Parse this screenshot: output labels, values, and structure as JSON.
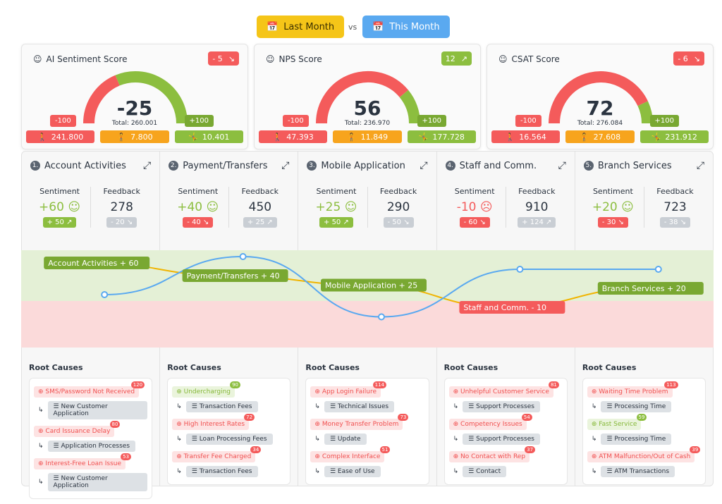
{
  "toggle": {
    "last": "Last Month",
    "vs": "vs",
    "this": "This Month"
  },
  "colors": {
    "red": "#f45b5b",
    "green": "#8cbe3f",
    "orange": "#f7a41d",
    "blue": "#5aa9f0",
    "line_orange": "#f0b400"
  },
  "gauges": [
    {
      "icon": "smile-icon",
      "title": "AI Sentiment Score",
      "delta": "- 5",
      "trend": "down",
      "value": "-25",
      "value_num": -25,
      "total": "Total: 260.001",
      "min": "-100",
      "max": "+100",
      "counts": [
        "241.800",
        "7.800",
        "10.401"
      ]
    },
    {
      "icon": "nps-person-icon",
      "title": "NPS Score",
      "delta": "12",
      "trend": "up",
      "value": "56",
      "value_num": 56,
      "total": "Total: 236.970",
      "min": "-100",
      "max": "+100",
      "counts": [
        "47.393",
        "11.849",
        "177.728"
      ]
    },
    {
      "icon": "smile-icon",
      "title": "CSAT Score",
      "delta": "- 6",
      "trend": "down",
      "value": "72",
      "value_num": 72,
      "total": "Total: 276.084",
      "min": "-100",
      "max": "+100",
      "counts": [
        "16.564",
        "27.608",
        "231.912"
      ]
    }
  ],
  "labels": {
    "sentiment": "Sentiment",
    "feedback": "Feedback",
    "root_causes": "Root Causes"
  },
  "sections": [
    {
      "num": "1.",
      "title": "Account Activities",
      "sentiment": "+60",
      "mood": "happy",
      "sent_delta": "+ 50",
      "sent_trend": "up",
      "feedback": "278",
      "fb_delta": "- 20",
      "chart_label": "Account Activities + 60",
      "causes": [
        {
          "text": "SMS/Password Not Received",
          "count": "120",
          "pos": false,
          "cat": "New Customer Application"
        },
        {
          "text": "Card Issuance Delay",
          "count": "80",
          "pos": false,
          "cat": "Application Processes"
        },
        {
          "text": "Interest-Free Loan Issue",
          "count": "53",
          "pos": false,
          "cat": "New Customer Application"
        }
      ]
    },
    {
      "num": "2.",
      "title": "Payment/Transfers",
      "sentiment": "+40",
      "mood": "happy",
      "sent_delta": "- 40",
      "sent_trend": "down",
      "feedback": "450",
      "fb_delta": "+ 25",
      "chart_label": "Payment/Transfers + 40",
      "causes": [
        {
          "text": "Undercharging",
          "count": "90",
          "pos": true,
          "cat": "Transaction Fees"
        },
        {
          "text": "High Interest Rates",
          "count": "72",
          "pos": false,
          "cat": "Loan Processing Fees"
        },
        {
          "text": "Transfer Fee Charged",
          "count": "34",
          "pos": false,
          "cat": "Transaction Fees"
        }
      ]
    },
    {
      "num": "3.",
      "title": "Mobile Application",
      "sentiment": "+25",
      "mood": "happy",
      "sent_delta": "+ 50",
      "sent_trend": "up",
      "feedback": "290",
      "fb_delta": "- 50",
      "chart_label": "Mobile Application + 25",
      "causes": [
        {
          "text": "App Login Failure",
          "count": "114",
          "pos": false,
          "cat": "Technical Issues"
        },
        {
          "text": "Money Transfer Problem",
          "count": "73",
          "pos": false,
          "cat": "Update"
        },
        {
          "text": "Complex Interface",
          "count": "51",
          "pos": false,
          "cat": "Ease of Use"
        }
      ]
    },
    {
      "num": "4.",
      "title": "Staff and Comm.",
      "sentiment": "-10",
      "mood": "sad",
      "sent_delta": "- 60",
      "sent_trend": "down",
      "feedback": "910",
      "fb_delta": "+ 124",
      "chart_label": "Staff and Comm. - 10",
      "causes": [
        {
          "text": "Unhelpful Customer Service",
          "count": "81",
          "pos": false,
          "cat": "Support Processes"
        },
        {
          "text": "Competency Issues",
          "count": "54",
          "pos": false,
          "cat": "Support Processes"
        },
        {
          "text": "No Contact with Rep",
          "count": "37",
          "pos": false,
          "cat": "Contact"
        }
      ]
    },
    {
      "num": "5.",
      "title": "Branch Services",
      "sentiment": "+20",
      "mood": "happy",
      "sent_delta": "- 30",
      "sent_trend": "down",
      "feedback": "723",
      "fb_delta": "- 38",
      "chart_label": "Branch Services + 20",
      "causes": [
        {
          "text": "Waiting Time Problem",
          "count": "113",
          "pos": false,
          "cat": "Processing Time"
        },
        {
          "text": "Fast Service",
          "count": "59",
          "pos": true,
          "cat": "Processing Time"
        },
        {
          "text": "ATM Malfunction/Out of Cash",
          "count": "39",
          "pos": false,
          "cat": "ATM Transactions"
        }
      ]
    }
  ]
}
